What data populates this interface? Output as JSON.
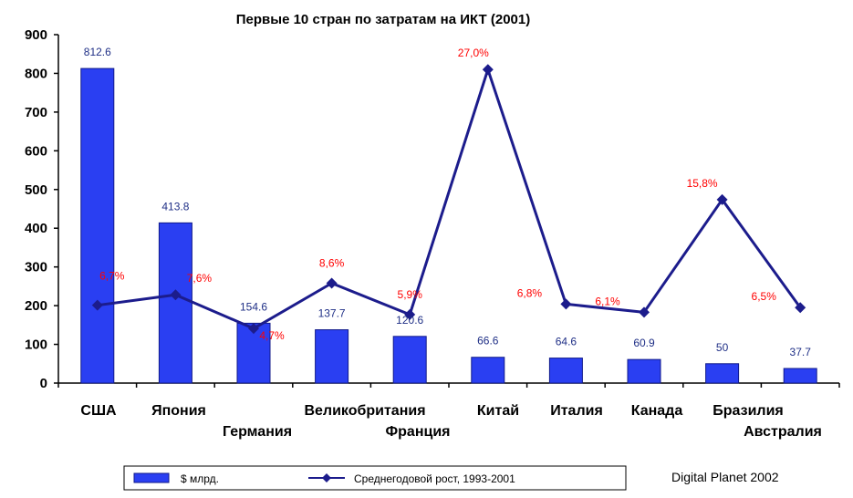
{
  "title": "Первые 10 стран по затратам на ИКТ (2001)",
  "credit": "Digital Planet 2002",
  "colors": {
    "bar": "#2a3ff2",
    "bar_edge": "#101a8a",
    "line": "#1c1c8c",
    "bar_label": "#1f2f86",
    "line_label": "#ff0000"
  },
  "legend": {
    "bar_label": "$ млрд.",
    "line_label": "Среднегодовой рост, 1993-2001"
  },
  "chart_data": {
    "type": "bar",
    "title": "Первые 10 стран по затратам на ИКТ (2001)",
    "categories": [
      "США",
      "Япония",
      "Германия",
      "Великобритания",
      "Франция",
      "Китай",
      "Италия",
      "Канада",
      "Бразилия",
      "Австралия"
    ],
    "ylim": [
      0,
      900
    ],
    "yticks": [
      "0",
      "100",
      "200",
      "300",
      "400",
      "500",
      "600",
      "700",
      "800",
      "900"
    ],
    "ytick_values": [
      0,
      100,
      200,
      300,
      400,
      500,
      600,
      700,
      800,
      900
    ],
    "series": [
      {
        "name": "$ млрд.",
        "type": "bar",
        "values": [
          812.6,
          413.8,
          154.6,
          137.7,
          120.6,
          66.6,
          64.6,
          60.9,
          50,
          37.7
        ],
        "labels": [
          "812.6",
          "413.8",
          "154.6",
          "137.7",
          "120.6",
          "66.6",
          "64.6",
          "60.9",
          "50",
          "37.7"
        ]
      },
      {
        "name": "Среднегодовой рост, 1993-2001",
        "type": "line",
        "values": [
          6.7,
          7.6,
          4.7,
          8.6,
          5.9,
          27.0,
          6.8,
          6.1,
          15.8,
          6.5
        ],
        "labels": [
          "6,7%",
          "7,6%",
          "4,7%",
          "8,6%",
          "5,9%",
          "27,0%",
          "6,8%",
          "6,1%",
          "15,8%",
          "6,5%"
        ]
      }
    ],
    "grid": false,
    "legend_position": "bottom"
  }
}
